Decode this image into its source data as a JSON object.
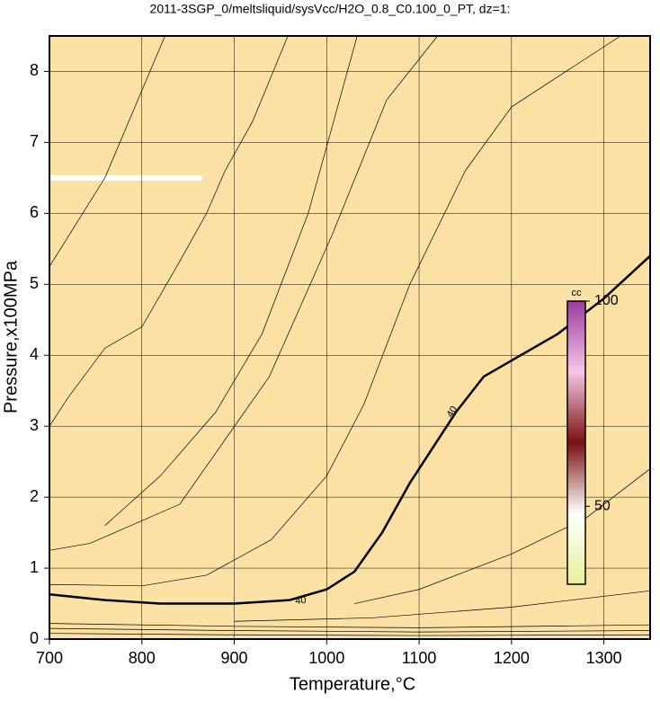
{
  "chart_data": {
    "type": "contour",
    "title": "2011-3SGP_0/meltsliquid/sysVcc/H2O_0.8_C0.100_0_PT, dz=1:",
    "x_label": "Temperature,°C",
    "y_label": "Pressure,x100MPa",
    "xlim": [
      700,
      1350
    ],
    "ylim": [
      0,
      8.5
    ],
    "xticks": [
      700,
      800,
      900,
      1000,
      1100,
      1200,
      1300
    ],
    "yticks": [
      0,
      1,
      2,
      3,
      4,
      5,
      6,
      7,
      8
    ],
    "grid": true,
    "background": "#fbe2a4",
    "contours": [
      {
        "x": [
          700,
          760,
          825
        ],
        "y": [
          5.25,
          6.5,
          8.5
        ]
      },
      {
        "x": [
          700,
          720,
          760,
          800,
          840,
          870,
          890,
          920,
          958
        ],
        "y": [
          3.0,
          3.4,
          4.1,
          4.4,
          5.3,
          6.0,
          6.6,
          7.3,
          8.5
        ]
      },
      {
        "x": [
          760,
          820,
          880,
          930,
          980,
          1033
        ],
        "y": [
          1.6,
          2.3,
          3.2,
          4.3,
          6.0,
          8.5
        ]
      },
      {
        "x": [
          700,
          744,
          841,
          938,
          1006,
          1065,
          1120
        ],
        "y": [
          1.25,
          1.35,
          1.9,
          3.7,
          5.7,
          7.6,
          8.5
        ]
      },
      {
        "x": [
          700,
          800,
          870,
          940,
          1000,
          1040,
          1090,
          1150,
          1200,
          1318
        ],
        "y": [
          0.77,
          0.75,
          0.9,
          1.4,
          2.3,
          3.3,
          5.0,
          6.6,
          7.5,
          8.5
        ]
      },
      {
        "level": 40,
        "x": [
          700,
          760,
          820,
          900,
          960,
          1000,
          1030,
          1060,
          1090,
          1100,
          1140,
          1170,
          1250,
          1300,
          1350
        ],
        "y": [
          0.63,
          0.55,
          0.5,
          0.5,
          0.55,
          0.7,
          0.95,
          1.5,
          2.2,
          2.4,
          3.2,
          3.7,
          4.3,
          4.8,
          5.4
        ]
      },
      {
        "x": [
          1030,
          1100,
          1200,
          1280,
          1350
        ],
        "y": [
          0.5,
          0.7,
          1.2,
          1.7,
          2.4
        ]
      },
      {
        "x": [
          900,
          1050,
          1200,
          1350
        ],
        "y": [
          0.25,
          0.3,
          0.45,
          0.68
        ]
      },
      {
        "x": [
          700,
          900,
          1100,
          1350
        ],
        "y": [
          0.22,
          0.18,
          0.16,
          0.2
        ]
      },
      {
        "x": [
          700,
          900,
          1100,
          1350
        ],
        "y": [
          0.15,
          0.12,
          0.1,
          0.12
        ]
      },
      {
        "x": [
          700,
          900,
          1100,
          1350
        ],
        "y": [
          0.08,
          0.06,
          0.05,
          0.06
        ]
      }
    ],
    "colorbar": {
      "label": "cc",
      "lim": [
        31,
        100
      ],
      "ticks": [
        50,
        100
      ],
      "colors": [
        "#e8ef9a",
        "#ffffff",
        "#7a1010",
        "#f6c6e6",
        "#9a3aa0"
      ]
    }
  }
}
